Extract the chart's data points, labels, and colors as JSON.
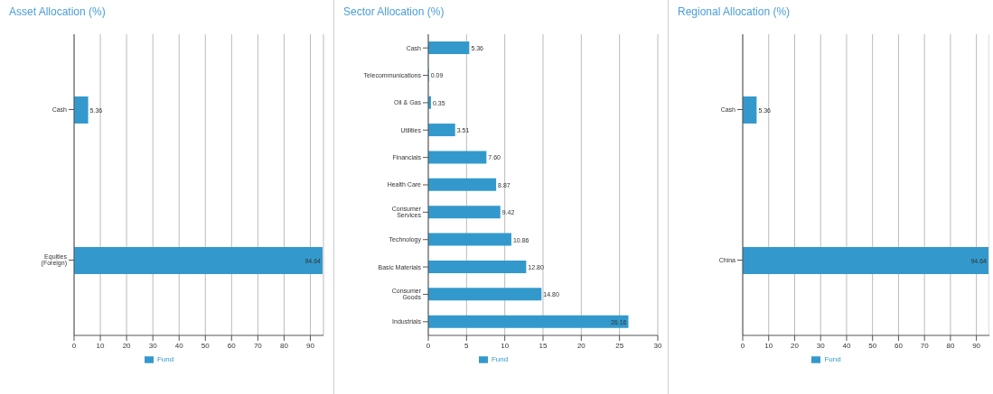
{
  "chart_data": [
    {
      "type": "bar",
      "orientation": "horizontal",
      "title": "Asset Allocation (%)",
      "categories": [
        "Cash",
        "Equities (Foreign)"
      ],
      "series": [
        {
          "name": "Fund",
          "color": "#3399cc",
          "values": [
            5.36,
            94.64
          ],
          "value_labels": [
            "5.36",
            "94.64"
          ]
        }
      ],
      "xlim": [
        0,
        95
      ],
      "xticks": [
        0,
        10,
        20,
        30,
        40,
        50,
        60,
        70,
        80,
        90
      ],
      "grid": "x",
      "legend": "bottom"
    },
    {
      "type": "bar",
      "orientation": "horizontal",
      "title": "Sector Allocation (%)",
      "categories": [
        "Cash",
        "Telecommunications",
        "Oil & Gas",
        "Utilities",
        "Financials",
        "Health Care",
        "Consumer Services",
        "Technology",
        "Basic Materials",
        "Consumer Goods",
        "Industrials"
      ],
      "series": [
        {
          "name": "Fund",
          "color": "#3399cc",
          "values": [
            5.36,
            0.09,
            0.35,
            3.51,
            7.6,
            8.87,
            9.42,
            10.86,
            12.8,
            14.8,
            26.16
          ],
          "value_labels": [
            "5.36",
            "0.09",
            "0.35",
            "3.51",
            "7.60",
            "8.87",
            "9.42",
            "10.86",
            "12.80",
            "14.80",
            "26.16"
          ]
        }
      ],
      "xlim": [
        0,
        30
      ],
      "xticks": [
        0,
        5,
        10,
        15,
        20,
        25,
        30
      ],
      "grid": "x",
      "legend": "bottom"
    },
    {
      "type": "bar",
      "orientation": "horizontal",
      "title": "Regional Allocation (%)",
      "categories": [
        "Cash",
        "China"
      ],
      "series": [
        {
          "name": "Fund",
          "color": "#3399cc",
          "values": [
            5.36,
            94.64
          ],
          "value_labels": [
            "5.36",
            "94.64"
          ]
        }
      ],
      "xlim": [
        0,
        95
      ],
      "xticks": [
        0,
        10,
        20,
        30,
        40,
        50,
        60,
        70,
        80,
        90
      ],
      "grid": "x",
      "legend": "bottom"
    }
  ]
}
